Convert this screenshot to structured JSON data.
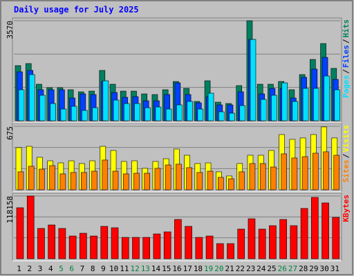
{
  "chart_data": [
    {
      "type": "bar",
      "title": "Daily usage for July 2025",
      "ylim": [
        0,
        3570
      ],
      "yticks": [
        3570
      ],
      "grid_divisions": 3,
      "separator": "/",
      "series": [
        {
          "name": "Hits",
          "color": "#008060",
          "values": [
            1968,
            2042,
            1304,
            1181,
            1181,
            1107,
            1033,
            1058,
            1796,
            1304,
            1058,
            1058,
            959,
            935,
            1107,
            1402,
            1156,
            689,
            1427,
            664,
            615,
            1255,
            3570,
            1304,
            1304,
            1402,
            1107,
            1648,
            2189,
            2755,
            1870
          ]
        },
        {
          "name": "Files",
          "color": "#0040ff",
          "values": [
            1747,
            1796,
            1107,
            1107,
            1107,
            812,
            959,
            935,
            1402,
            1009,
            836,
            861,
            713,
            713,
            935,
            1353,
            935,
            640,
            861,
            566,
            566,
            1033,
            2903,
            959,
            1156,
            1156,
            812,
            1550,
            1845,
            2263,
            1476
          ]
        },
        {
          "name": "Pages",
          "color": "#00e0ff",
          "values": [
            1107,
            1648,
            910,
            615,
            418,
            517,
            369,
            467,
            1427,
            738,
            615,
            615,
            467,
            492,
            418,
            566,
            689,
            418,
            984,
            320,
            271,
            541,
            2903,
            763,
            910,
            1353,
            689,
            1156,
            1156,
            1599,
            1107
          ]
        }
      ]
    },
    {
      "type": "bar",
      "ylim": [
        0,
        675
      ],
      "yticks": [
        675
      ],
      "grid_divisions": 3,
      "separator": "/",
      "series": [
        {
          "name": "Visits",
          "color": "#ffff00",
          "values": [
            448,
            462,
            345,
            308,
            286,
            308,
            279,
            308,
            462,
            418,
            301,
            308,
            228,
            301,
            330,
            433,
            367,
            279,
            286,
            191,
            147,
            279,
            367,
            367,
            418,
            587,
            536,
            551,
            587,
            668,
            551
          ]
        },
        {
          "name": "Sites",
          "color": "#ff8000",
          "values": [
            191,
            250,
            220,
            257,
            169,
            184,
            184,
            198,
            316,
            198,
            169,
            176,
            176,
            228,
            264,
            272,
            235,
            184,
            198,
            132,
            117,
            191,
            279,
            279,
            242,
            382,
            338,
            352,
            389,
            404,
            367
          ]
        }
      ]
    },
    {
      "type": "bar",
      "ylim": [
        0,
        118158
      ],
      "yticks": [
        118158
      ],
      "grid_divisions": 3,
      "categories": [
        "1",
        "2",
        "3",
        "4",
        "5",
        "6",
        "7",
        "8",
        "9",
        "10",
        "11",
        "12",
        "13",
        "14",
        "15",
        "16",
        "17",
        "18",
        "19",
        "20",
        "21",
        "22",
        "23",
        "24",
        "25",
        "26",
        "27",
        "28",
        "29",
        "30",
        "31"
      ],
      "category_colors": [
        "#000000",
        "#000000",
        "#000000",
        "#000000",
        "#008040",
        "#008040",
        "#000000",
        "#000000",
        "#000000",
        "#000000",
        "#000000",
        "#008040",
        "#008040",
        "#000000",
        "#000000",
        "#000000",
        "#000000",
        "#000000",
        "#008040",
        "#008040",
        "#000000",
        "#000000",
        "#000000",
        "#000000",
        "#000000",
        "#008040",
        "#008040",
        "#000000",
        "#000000",
        "#000000",
        "#000000"
      ],
      "series": [
        {
          "name": "KBytes",
          "color": "#ff0000",
          "values": [
            96052,
            118158,
            57112,
            63602,
            57112,
            42834,
            48026,
            42834,
            61006,
            58410,
            40238,
            40238,
            40238,
            46728,
            50622,
            73986,
            61006,
            40238,
            42834,
            28556,
            28556,
            55814,
            75284,
            55814,
            62304,
            73986,
            62304,
            94754,
            115522,
            105138,
            77880
          ]
        }
      ]
    }
  ]
}
